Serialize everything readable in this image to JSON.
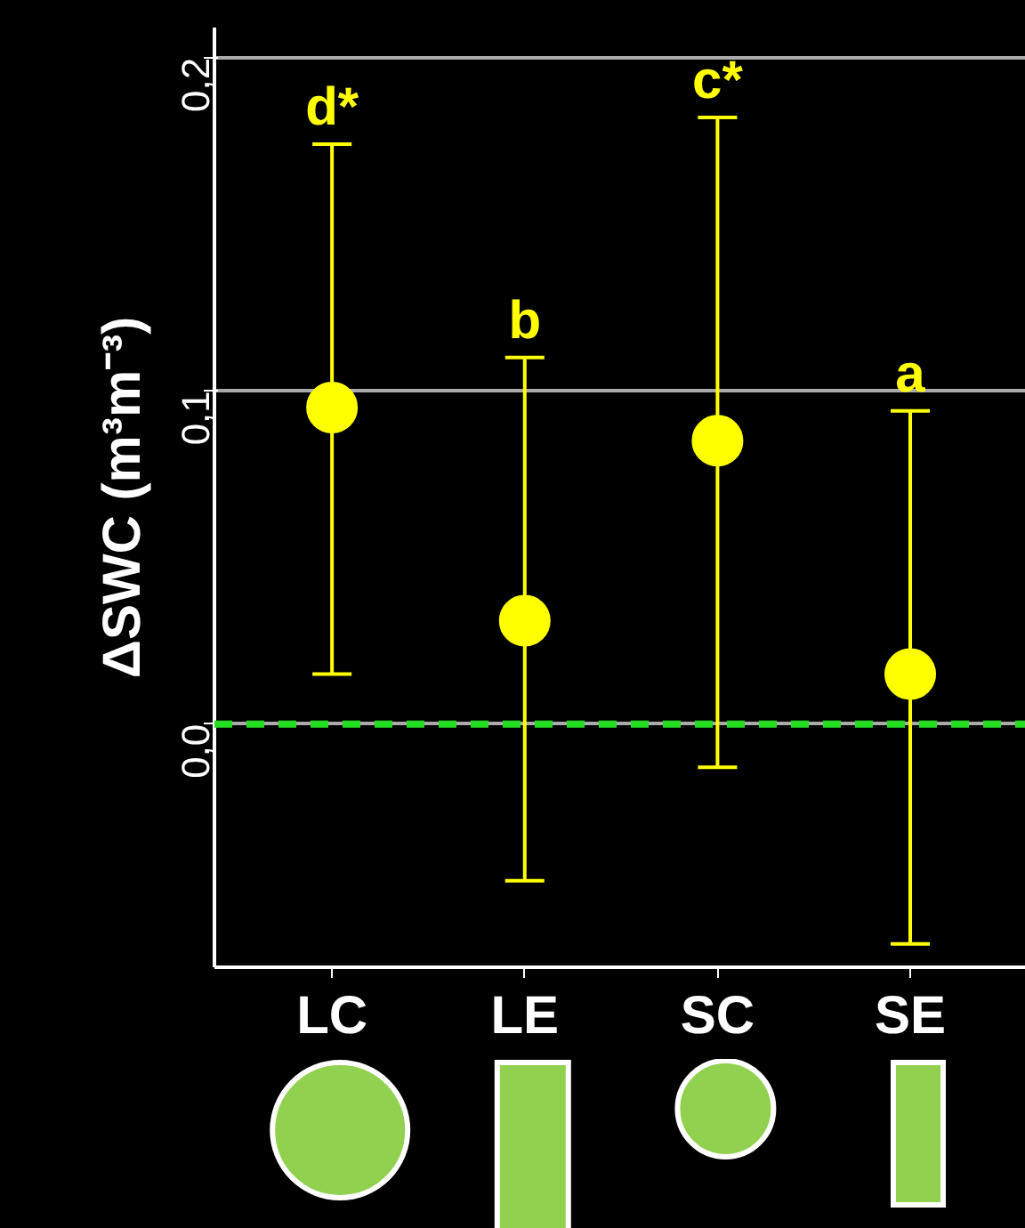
{
  "chart_data": {
    "type": "scatter",
    "ylabel": "ΔSWC (m³m⁻³)",
    "categories": [
      "LC",
      "LE",
      "SC",
      "SE"
    ],
    "series": [
      {
        "color": "#ffff00",
        "values": [
          0.095,
          0.031,
          0.085,
          0.015
        ],
        "errors": [
          [
            0.015,
            0.174
          ],
          [
            -0.047,
            0.11
          ],
          [
            -0.013,
            0.182
          ],
          [
            -0.066,
            0.094
          ]
        ]
      }
    ],
    "marker": "circle",
    "ylim": [
      -0.073,
      0.209
    ],
    "yticks": [
      {
        "value": 0,
        "label": "0,0"
      },
      {
        "value": 0.1,
        "label": "0,1"
      },
      {
        "value": 0.2,
        "label": "0,2"
      }
    ],
    "grid": "y",
    "ref_lines": [
      {
        "axis": "y",
        "value": 0,
        "color": "#22dd22",
        "line_style": "dashed"
      }
    ],
    "annotations": [
      {
        "text": "d*",
        "x": "LC",
        "y": 0.174
      },
      {
        "text": "b",
        "x": "LE",
        "y": 0.11
      },
      {
        "text": "c*",
        "x": "SC",
        "y": 0.182
      },
      {
        "text": "a",
        "x": "SE",
        "y": 0.094
      }
    ]
  }
}
